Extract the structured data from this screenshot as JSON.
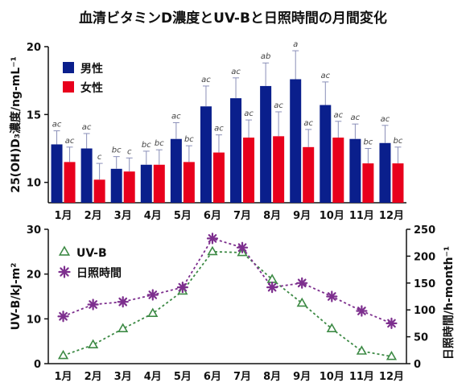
{
  "title": "血清ビタミンD濃度とUV-Bと日照時間の月間変化",
  "colors": {
    "male": "#0a1f8c",
    "female": "#e8001c",
    "uvb": "#3d8a45",
    "sunshine": "#7d2f8e",
    "axis": "#111111"
  },
  "chart_data": [
    {
      "type": "bar",
      "categories": [
        "1月",
        "2月",
        "3月",
        "4月",
        "5月",
        "6月",
        "7月",
        "8月",
        "9月",
        "10月",
        "11月",
        "12月"
      ],
      "ylabel": "25(OH)D₃濃度/ng-mL⁻¹",
      "ylim": [
        8.5,
        20
      ],
      "yticks": [
        10,
        15,
        20
      ],
      "legend_position": "top-left",
      "series": [
        {
          "name": "男性",
          "values": [
            12.8,
            12.5,
            11.0,
            11.3,
            13.2,
            15.6,
            16.2,
            17.1,
            17.6,
            15.7,
            13.2,
            12.9
          ],
          "errors": [
            1.0,
            1.1,
            0.9,
            1.0,
            1.2,
            1.5,
            1.5,
            1.7,
            2.1,
            1.7,
            1.1,
            1.3
          ],
          "sig": [
            "ac",
            "ac",
            "bc",
            "bc",
            "ac",
            "ac",
            "ac",
            "ab",
            "a",
            "ac",
            "ac",
            "ac"
          ]
        },
        {
          "name": "女性",
          "values": [
            11.5,
            10.2,
            10.8,
            11.3,
            11.5,
            12.2,
            13.3,
            13.4,
            12.6,
            13.3,
            11.4,
            11.4
          ],
          "errors": [
            1.1,
            1.2,
            1.0,
            1.1,
            1.2,
            1.3,
            1.3,
            1.8,
            1.3,
            1.2,
            1.1,
            1.2
          ],
          "sig": [
            "ac",
            "c",
            "c",
            "bc",
            "bc",
            "ac",
            "ac",
            "ac",
            "ac",
            "ac",
            "bc",
            "bc"
          ]
        }
      ]
    },
    {
      "type": "line",
      "categories": [
        "1月",
        "2月",
        "3月",
        "4月",
        "5月",
        "6月",
        "7月",
        "8月",
        "9月",
        "10月",
        "11月",
        "12月"
      ],
      "ylabel": "UV-B/kJ-m²",
      "ylim": [
        0,
        30
      ],
      "yticks": [
        0,
        10,
        20,
        30
      ],
      "y2label": "日照時間/h-month⁻¹",
      "y2lim": [
        0,
        250
      ],
      "y2ticks": [
        0,
        50,
        100,
        150,
        200,
        250
      ],
      "legend_position": "top-left",
      "series": [
        {
          "name": "UV-B",
          "axis": "left",
          "marker": "triangle",
          "values": [
            1.8,
            4.2,
            7.8,
            11.2,
            16.2,
            25.0,
            24.8,
            18.8,
            13.5,
            7.8,
            2.8,
            1.6
          ]
        },
        {
          "name": "日照時間",
          "axis": "right",
          "marker": "star",
          "values": [
            88,
            110,
            115,
            128,
            142,
            233,
            216,
            142,
            150,
            125,
            98,
            75
          ]
        }
      ]
    }
  ]
}
